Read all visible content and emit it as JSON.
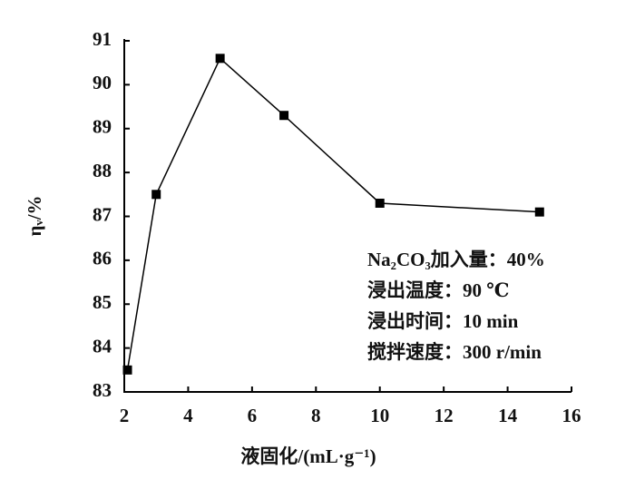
{
  "chart_data": {
    "type": "line",
    "x": [
      2.1,
      3,
      5,
      7,
      10,
      15
    ],
    "series": [
      {
        "color": "#000000",
        "values": [
          83.5,
          87.5,
          90.6,
          89.3,
          87.3,
          87.1
        ]
      }
    ],
    "xlim": [
      2,
      16
    ],
    "xticks": [
      2,
      4,
      6,
      8,
      10,
      12,
      14,
      16
    ],
    "ylim": [
      83,
      91
    ],
    "yticks": [
      83,
      84,
      85,
      86,
      87,
      88,
      89,
      90,
      91
    ],
    "xlabel": "液固化/(mL·g⁻¹)",
    "ylabel": "ηᵥ/%",
    "annotations": [
      "Na₂CO₃加入量：40%",
      "浸出温度：90 ℃",
      "浸出时间：10 min",
      "搅拌速度：300 r/min"
    ]
  }
}
